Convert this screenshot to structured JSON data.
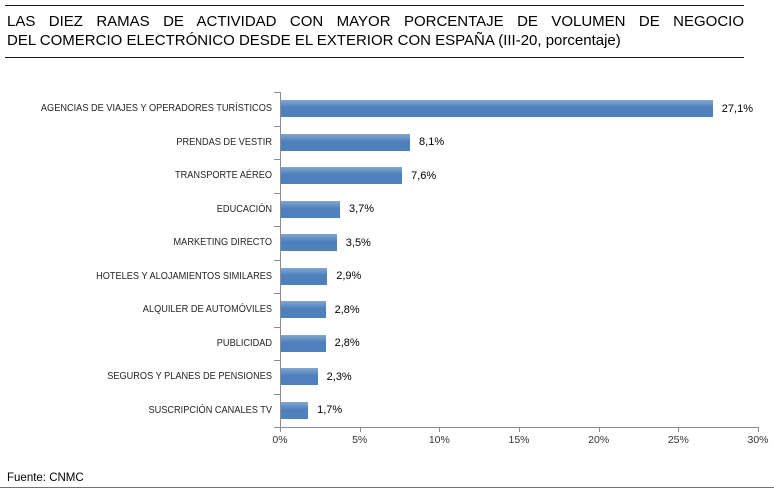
{
  "title": {
    "line1": "LAS DIEZ RAMAS DE ACTIVIDAD CON MAYOR PORCENTAJE DE VOLUMEN DE NEGOCIO",
    "line2": "DEL COMERCIO ELECTRÓNICO DESDE EL EXTERIOR CON ESPAÑA (III-20, porcentaje)"
  },
  "footer": {
    "source": "Fuente: CNMC"
  },
  "chart_data": {
    "type": "bar",
    "orientation": "horizontal",
    "title": "LAS DIEZ RAMAS DE ACTIVIDAD CON MAYOR PORCENTAJE DE VOLUMEN DE NEGOCIO DEL COMERCIO ELECTRÓNICO DESDE EL EXTERIOR CON ESPAÑA (III-20, porcentaje)",
    "categories": [
      "AGENCIAS DE VIAJES Y OPERADORES TURÍSTICOS",
      "PRENDAS DE VESTIR",
      "TRANSPORTE AÉREO",
      "EDUCACIÓN",
      "MARKETING DIRECTO",
      "HOTELES Y ALOJAMIENTOS SIMILARES",
      "ALQUILER DE AUTOMÓVILES",
      "PUBLICIDAD",
      "SEGUROS Y PLANES DE PENSIONES",
      "SUSCRIPCIÓN CANALES TV"
    ],
    "values": [
      27.1,
      8.1,
      7.6,
      3.7,
      3.5,
      2.9,
      2.8,
      2.8,
      2.3,
      1.7
    ],
    "value_labels": [
      "27,1%",
      "8,1%",
      "7,6%",
      "3,7%",
      "3,5%",
      "2,9%",
      "2,8%",
      "2,8%",
      "2,3%",
      "1,7%"
    ],
    "xlim": [
      0,
      30
    ],
    "x_ticks": [
      0,
      5,
      10,
      15,
      20,
      25,
      30
    ],
    "x_tick_labels": [
      "0%",
      "5%",
      "10%",
      "15%",
      "20%",
      "25%",
      "30%"
    ],
    "bar_color": "#4d80bc",
    "axis_color": "#8c8c8c",
    "grid": false,
    "legend": false,
    "source": "Fuente: CNMC"
  }
}
